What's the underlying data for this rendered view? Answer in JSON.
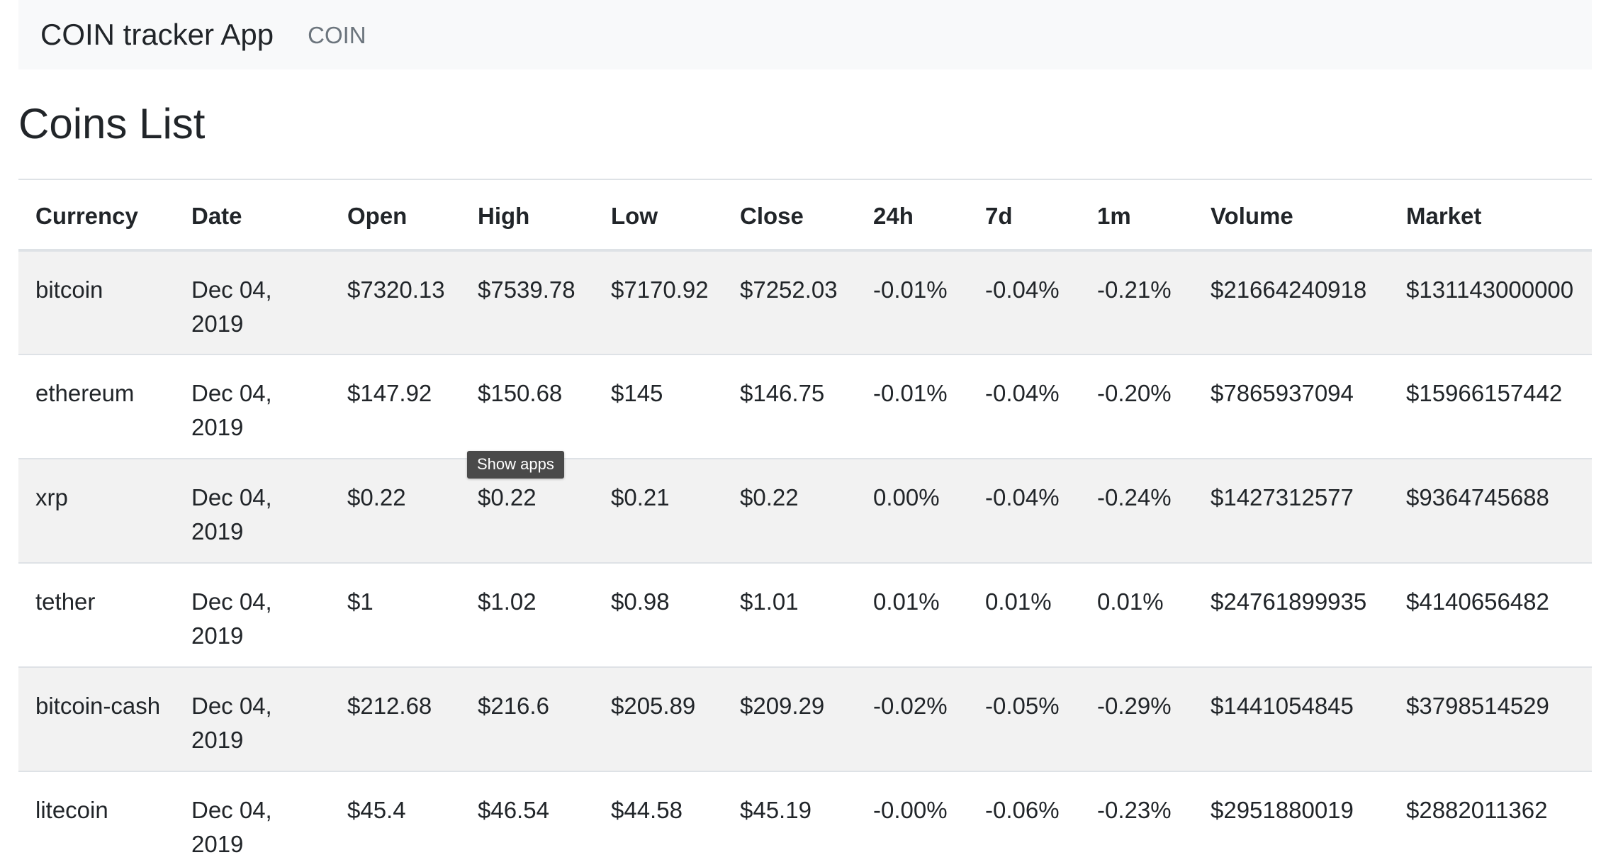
{
  "navbar": {
    "brand": "COIN tracker App",
    "link": "COIN"
  },
  "page": {
    "title": "Coins List"
  },
  "table": {
    "headers": [
      "Currency",
      "Date",
      "Open",
      "High",
      "Low",
      "Close",
      "24h",
      "7d",
      "1m",
      "Volume",
      "Market"
    ],
    "rows": [
      [
        "bitcoin",
        "Dec 04, 2019",
        "$7320.13",
        "$7539.78",
        "$7170.92",
        "$7252.03",
        "-0.01%",
        "-0.04%",
        "-0.21%",
        "$21664240918",
        "$131143000000"
      ],
      [
        "ethereum",
        "Dec 04, 2019",
        "$147.92",
        "$150.68",
        "$145",
        "$146.75",
        "-0.01%",
        "-0.04%",
        "-0.20%",
        "$7865937094",
        "$15966157442"
      ],
      [
        "xrp",
        "Dec 04, 2019",
        "$0.22",
        "$0.22",
        "$0.21",
        "$0.22",
        "0.00%",
        "-0.04%",
        "-0.24%",
        "$1427312577",
        "$9364745688"
      ],
      [
        "tether",
        "Dec 04, 2019",
        "$1",
        "$1.02",
        "$0.98",
        "$1.01",
        "0.01%",
        "0.01%",
        "0.01%",
        "$24761899935",
        "$4140656482"
      ],
      [
        "bitcoin-cash",
        "Dec 04, 2019",
        "$212.68",
        "$216.6",
        "$205.89",
        "$209.29",
        "-0.02%",
        "-0.05%",
        "-0.29%",
        "$1441054845",
        "$3798514529"
      ],
      [
        "litecoin",
        "Dec 04, 2019",
        "$45.4",
        "$46.54",
        "$44.58",
        "$45.19",
        "-0.00%",
        "-0.06%",
        "-0.23%",
        "$2951880019",
        "$2882011362"
      ]
    ]
  },
  "tooltip": {
    "text": "Show apps"
  }
}
